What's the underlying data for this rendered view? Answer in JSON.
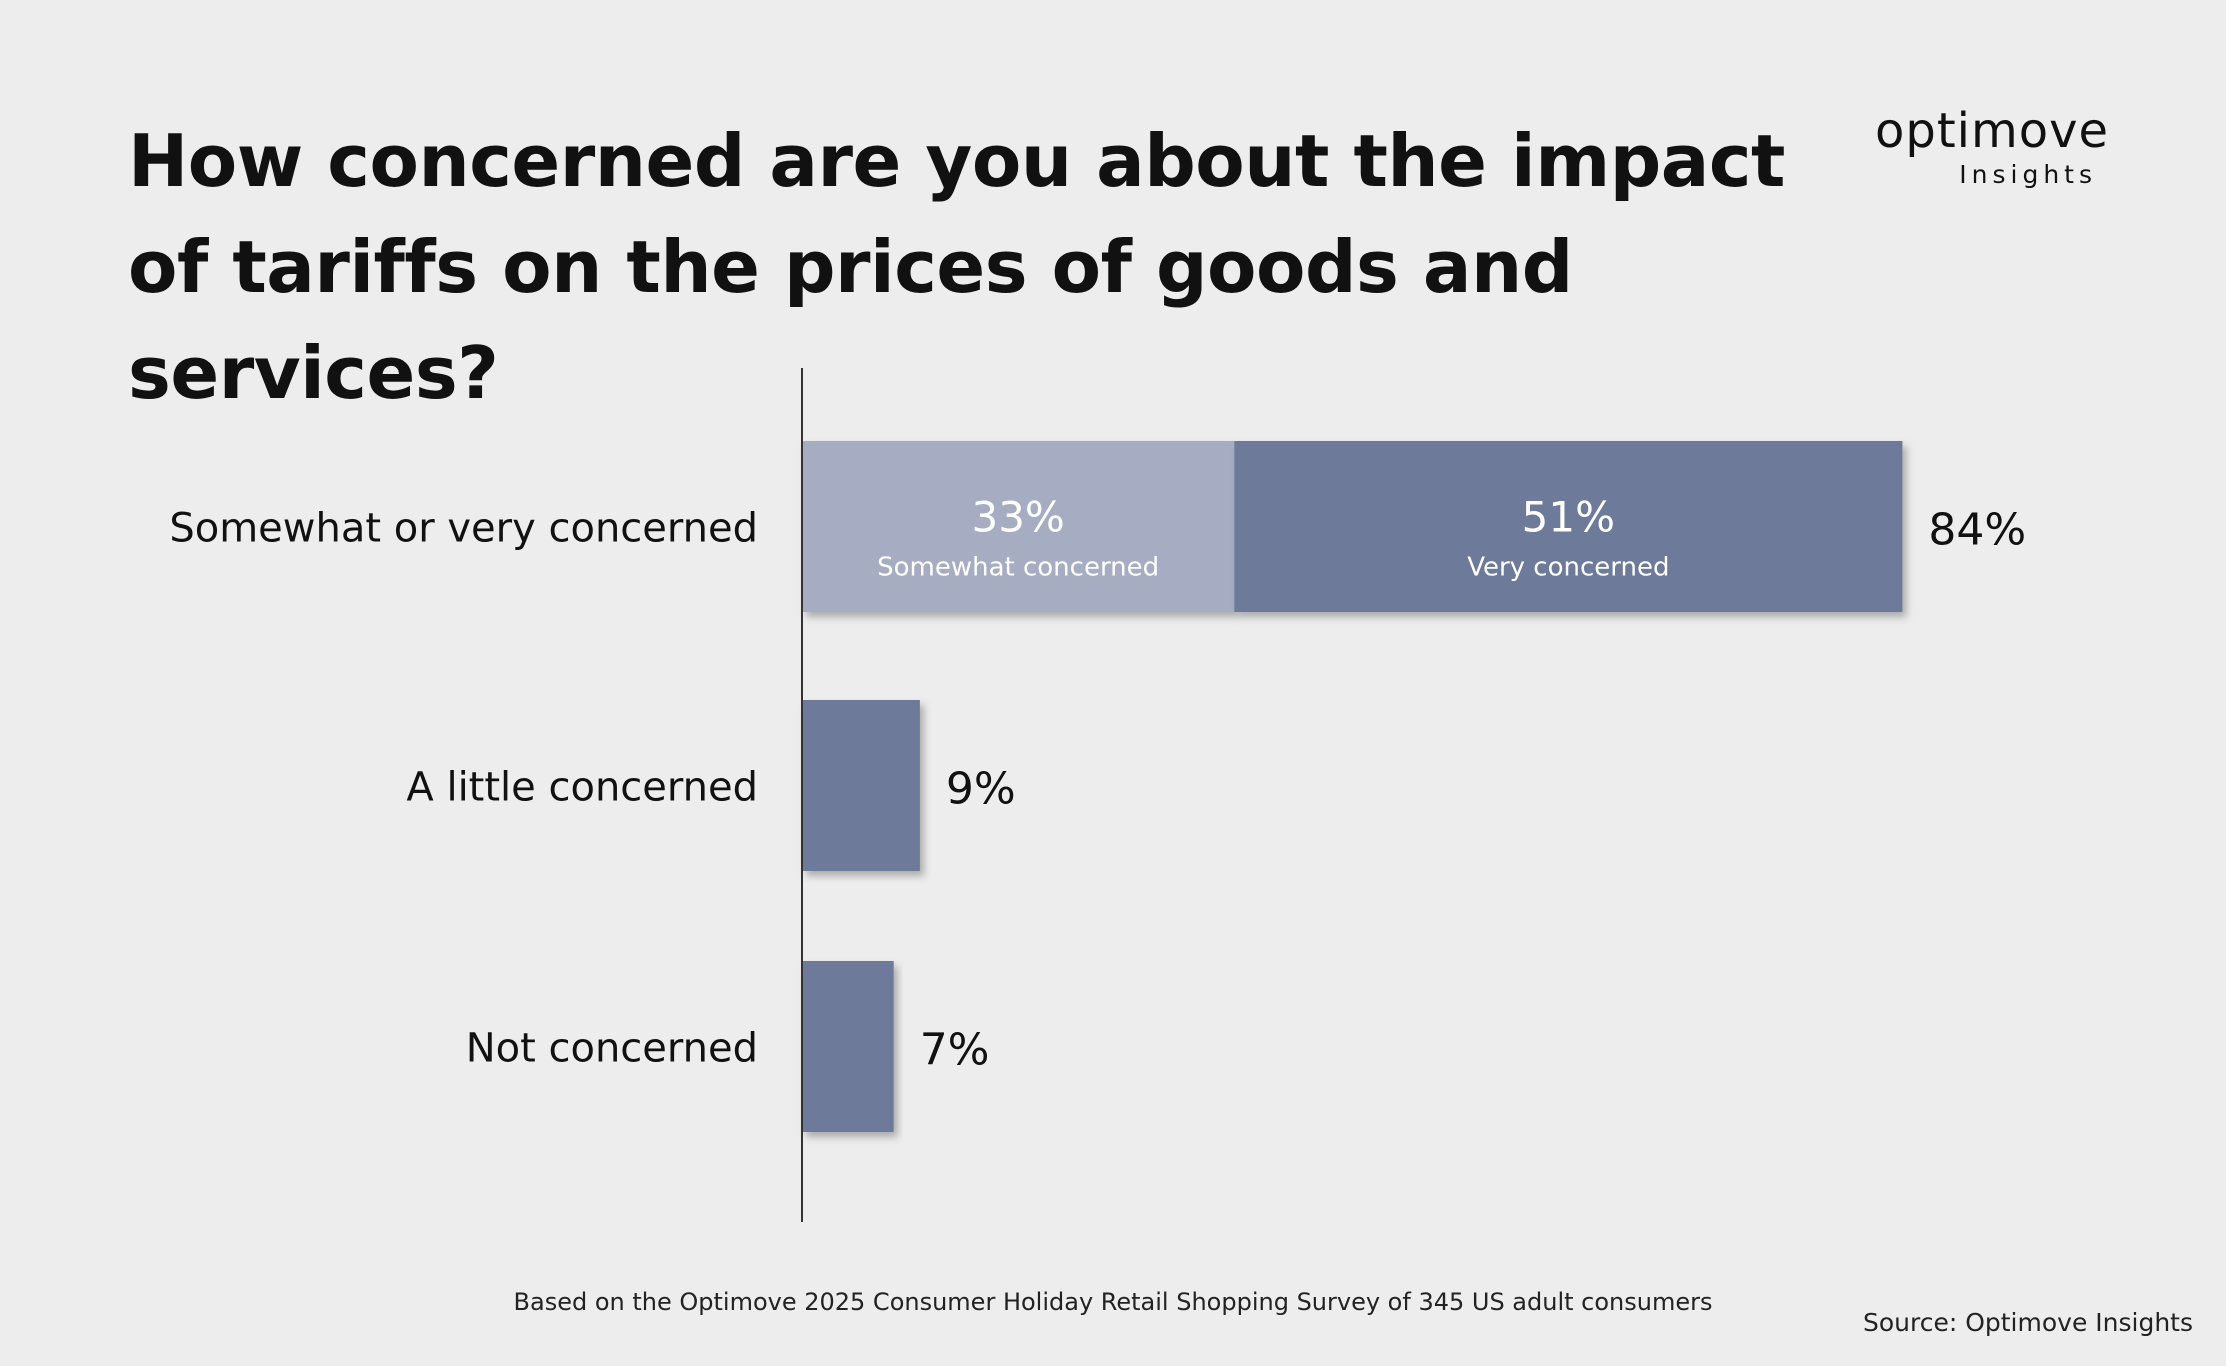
{
  "title": "How concerned are you about the impact of tariffs on the prices of goods and services?",
  "logo": {
    "name": "optimove",
    "sub": "Insights"
  },
  "colors": {
    "background": "#ededed",
    "dark_bar": "#6d7a9a",
    "light_bar": "#a6adc3",
    "axis": "#333333",
    "text": "#111111"
  },
  "chart_data": {
    "type": "bar",
    "orientation": "horizontal",
    "stacked": true,
    "categories": [
      "Somewhat or very concerned",
      "A little concerned",
      "Not concerned"
    ],
    "series": [
      {
        "name": "Somewhat concerned",
        "values": [
          33,
          0,
          0
        ]
      },
      {
        "name": "Very concerned",
        "values": [
          51,
          9,
          7
        ]
      }
    ],
    "totals": [
      "84%",
      "9%",
      "7%"
    ],
    "segment_labels": [
      {
        "value": "33%",
        "label": "Somewhat concerned"
      },
      {
        "value": "51%",
        "label": "Very concerned"
      }
    ],
    "xlim": [
      0,
      100
    ],
    "unit": "%",
    "grid": false,
    "legend": "none"
  },
  "footnote": "Based on the Optimove 2025 Consumer Holiday Retail Shopping Survey of 345 US adult consumers",
  "source": "Source: Optimove Insights"
}
